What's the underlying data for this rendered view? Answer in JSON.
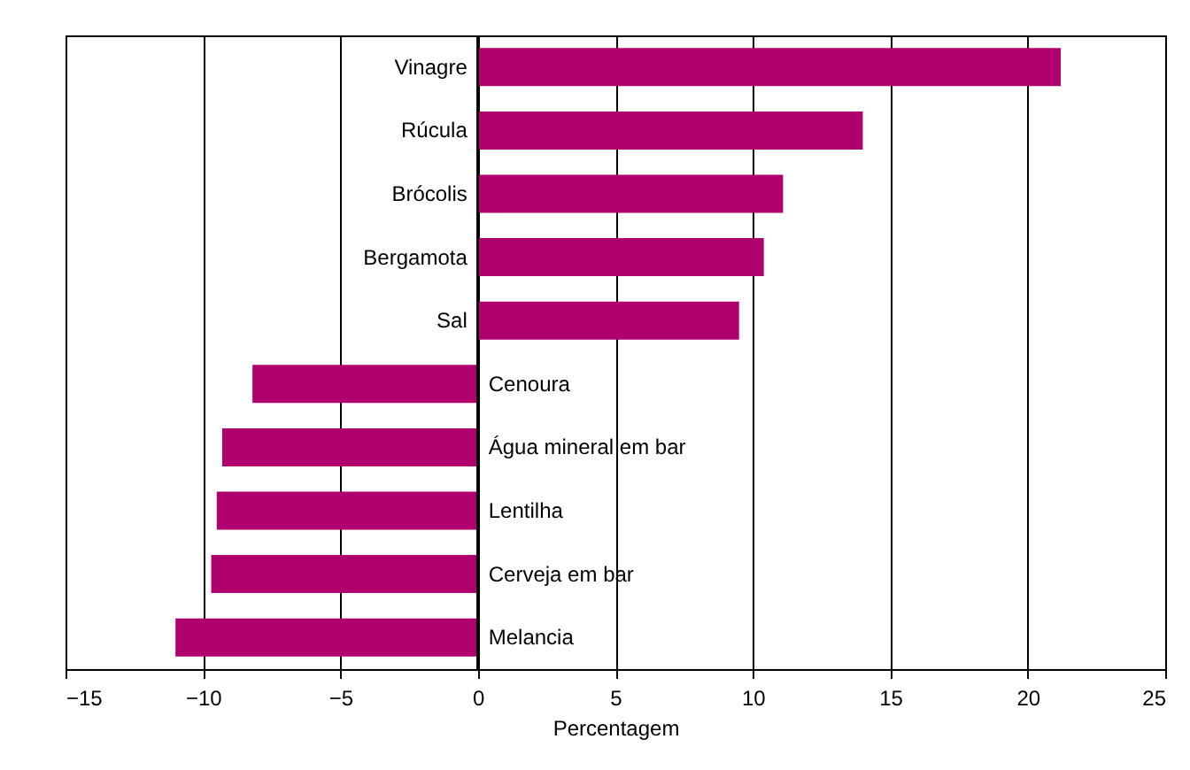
{
  "chart_data": {
    "type": "bar",
    "orientation": "horizontal",
    "xlabel": "Percentagem",
    "categories": [
      "Vinagre",
      "Rúcula",
      "Brócolis",
      "Bergamota",
      "Sal",
      "Cenoura",
      "Água mineral em bar",
      "Lentilha",
      "Cerveja em bar",
      "Melancia"
    ],
    "values": [
      21.2,
      14.0,
      11.1,
      10.4,
      9.5,
      -8.2,
      -9.3,
      -9.5,
      -9.7,
      -11.0
    ],
    "color": "#b0006e",
    "xlim": [
      -15,
      25
    ],
    "xticks": [
      -15,
      -10,
      -5,
      0,
      5,
      10,
      15,
      20,
      25
    ],
    "grid": "x"
  }
}
